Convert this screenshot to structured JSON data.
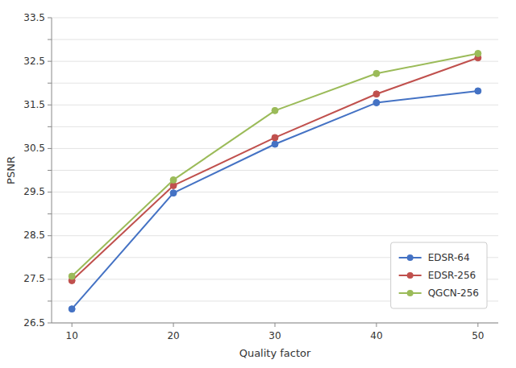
{
  "chart_data": {
    "type": "line",
    "x": [
      10,
      20,
      30,
      40,
      50
    ],
    "series": [
      {
        "name": "EDSR-64",
        "color": "#4472C4",
        "marker": "circle",
        "values": [
          26.82,
          29.48,
          30.6,
          31.55,
          31.82
        ]
      },
      {
        "name": "EDSR-256",
        "color": "#C0504D",
        "marker": "circle",
        "values": [
          27.47,
          29.65,
          30.75,
          31.75,
          32.58
        ]
      },
      {
        "name": "QGCN-256",
        "color": "#9BBB59",
        "marker": "circle",
        "values": [
          27.57,
          29.78,
          31.37,
          32.22,
          32.68
        ]
      }
    ],
    "x_label": "Quality factor",
    "y_label": "PSNR",
    "xlim": [
      8,
      52
    ],
    "ylim": [
      26.5,
      33.5
    ],
    "xticks": [
      10,
      20,
      30,
      40,
      50
    ],
    "yticks": [
      26.5,
      {
        "value": 27.0,
        "label": null
      },
      27.5,
      {
        "value": 28.0,
        "label": null
      },
      28.5,
      {
        "value": 29.0,
        "label": null
      },
      29.5,
      {
        "value": 30.0,
        "label": null
      },
      30.5,
      {
        "value": 31.0,
        "label": null
      },
      31.5,
      {
        "value": 32.0,
        "label": null
      },
      32.5,
      {
        "value": 33.0,
        "label": null
      },
      33.5
    ],
    "grid": true,
    "legend": "lower right"
  }
}
